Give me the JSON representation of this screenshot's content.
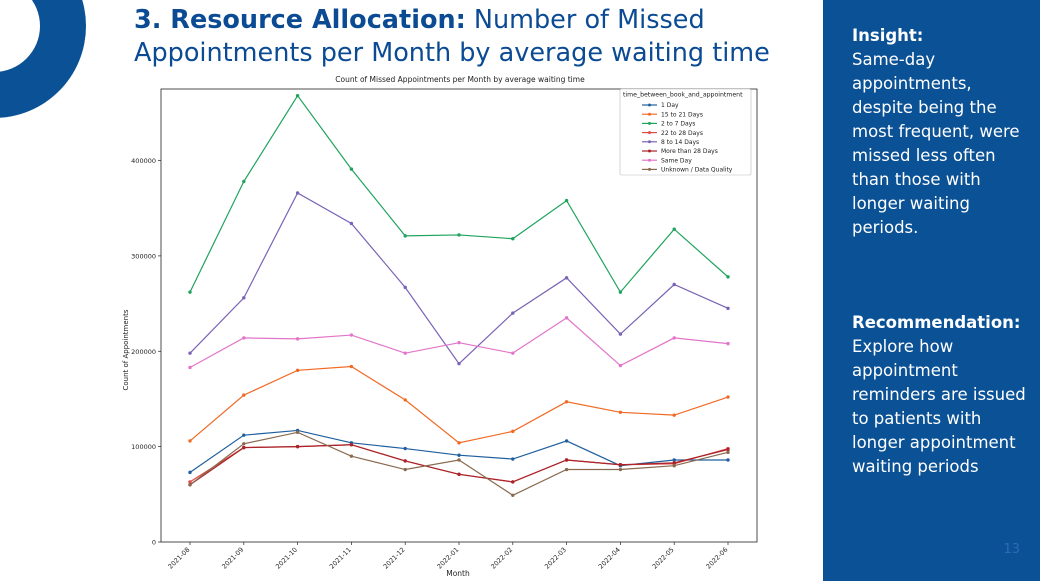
{
  "slide": {
    "title_bold": "3. Resource Allocation:",
    "title_rest": " Number of Missed Appointments per Month by average waiting time",
    "page_number": "13"
  },
  "side_panel": {
    "insight_heading": "Insight:",
    "insight_text": "Same-day appointments, despite being the most frequent, were missed less often than those with longer waiting periods.",
    "recommendation_heading": "Recommendation:",
    "recommendation_text": "Explore how appointment reminders are issued to patients with longer appointment waiting periods"
  },
  "colors": {
    "brand_blue": "#0b4b94",
    "panel_blue": "#0b5196"
  },
  "chart_data": {
    "type": "line",
    "title": "Count of Missed Appointments per Month by average waiting time",
    "xlabel": "Month",
    "ylabel": "Count of Appointments",
    "ylim": [
      0,
      475000
    ],
    "yticks": [
      0,
      100000,
      200000,
      300000,
      400000
    ],
    "ytick_labels": [
      "0",
      "100000",
      "200000",
      "300000",
      "400000"
    ],
    "grid": false,
    "legend_title": "time_between_book_and_appointment",
    "legend_position": "top-right",
    "categories": [
      "2021-08",
      "2021-09",
      "2021-10",
      "2021-11",
      "2021-12",
      "2022-01",
      "2022-02",
      "2022-03",
      "2022-04",
      "2022-05",
      "2022-06"
    ],
    "series": [
      {
        "name": "1 Day",
        "color": "#1f5f9e",
        "values": [
          73000,
          112000,
          117000,
          104000,
          98000,
          91000,
          87000,
          106000,
          80000,
          86000,
          86000
        ]
      },
      {
        "name": "15  to 21 Days",
        "color": "#f06a25",
        "values": [
          106000,
          154000,
          180000,
          184000,
          149000,
          104000,
          116000,
          147000,
          136000,
          133000,
          152000
        ]
      },
      {
        "name": "2 to 7 Days",
        "color": "#1fa35d",
        "values": [
          262000,
          378000,
          468000,
          391000,
          321000,
          322000,
          318000,
          358000,
          262000,
          328000,
          278000
        ]
      },
      {
        "name": "22  to 28 Days",
        "color": "#e04a43",
        "values": [
          63000,
          99000,
          100000,
          102000,
          85000,
          71000,
          63000,
          86000,
          81000,
          82000,
          98000
        ]
      },
      {
        "name": "8  to 14 Days",
        "color": "#7a63b5",
        "values": [
          198000,
          256000,
          366000,
          334000,
          267000,
          187000,
          240000,
          277000,
          218000,
          270000,
          245000
        ]
      },
      {
        "name": "More than 28 Days",
        "color": "#a8232a",
        "values": [
          60000,
          99000,
          100000,
          102000,
          85000,
          71000,
          63000,
          86000,
          81000,
          83000,
          97000
        ]
      },
      {
        "name": "Same Day",
        "color": "#e274c9",
        "values": [
          183000,
          214000,
          213000,
          217000,
          198000,
          209000,
          198000,
          235000,
          185000,
          214000,
          208000
        ]
      },
      {
        "name": "Unknown / Data Quality",
        "color": "#8a6a4f",
        "values": [
          60000,
          103000,
          115000,
          90000,
          76000,
          86000,
          49000,
          76000,
          76000,
          80000,
          94000
        ]
      }
    ]
  }
}
